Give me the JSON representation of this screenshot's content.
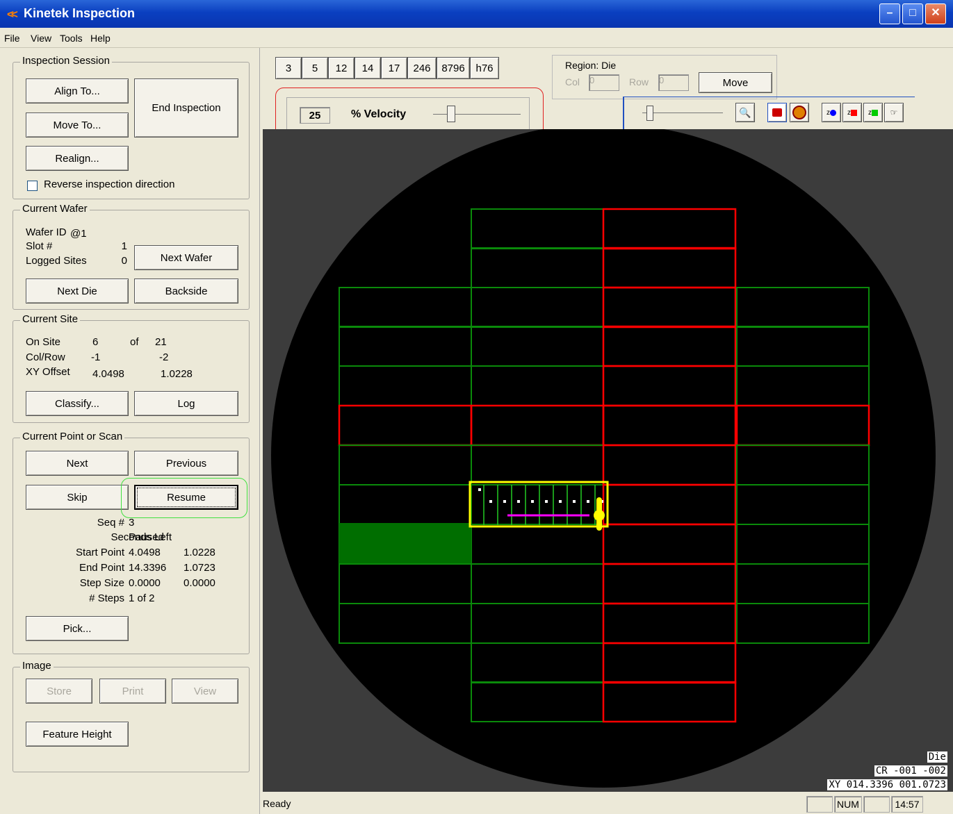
{
  "window": {
    "title": "Kinetek Inspection",
    "minimize": "–",
    "maximize": "□",
    "close": "✕"
  },
  "menu": [
    "File",
    "View",
    "Tools",
    "Help"
  ],
  "inspection_session": {
    "title": "Inspection Session",
    "align_to": "Align To...",
    "move_to": "Move To...",
    "end_inspection": "End Inspection",
    "realign": "Realign...",
    "reverse_direction": "Reverse inspection direction",
    "reverse_checked": false
  },
  "current_wafer": {
    "title": "Current Wafer",
    "wafer_id_label": "Wafer ID",
    "wafer_id": "@1",
    "slot_label": "Slot #",
    "slot": "1",
    "logged_sites_label": "Logged Sites",
    "logged_sites": "0",
    "next_wafer": "Next Wafer",
    "next_die": "Next Die",
    "backside": "Backside"
  },
  "current_site": {
    "title": "Current Site",
    "on_site_label": "On Site",
    "on_site": "6",
    "of_label": "of",
    "total": "21",
    "colrow_label": "Col/Row",
    "col": "-1",
    "row": "-2",
    "xy_offset_label": "XY Offset",
    "x_offset": "4.0498",
    "y_offset": "1.0228",
    "classify": "Classify...",
    "log": "Log"
  },
  "current_point": {
    "title": "Current Point or Scan",
    "next": "Next",
    "previous": "Previous",
    "skip": "Skip",
    "resume": "Resume",
    "seq_label": "Seq #",
    "seq": "3",
    "seconds_left_label": "Seconds Left",
    "seconds_left": "Paused",
    "start_point_label": "Start Point",
    "start_x": "4.0498",
    "start_y": "1.0228",
    "end_point_label": "End Point",
    "end_x": "14.3396",
    "end_y": "1.0723",
    "step_size_label": "Step Size",
    "step_x": "0.0000",
    "step_y": "0.0000",
    "steps_label": "# Steps",
    "steps": "1 of 2",
    "pick": "Pick..."
  },
  "image": {
    "title": "Image",
    "store": "Store",
    "print": "Print",
    "view": "View",
    "feature_height": "Feature Height"
  },
  "number_buttons": [
    "3",
    "5",
    "12",
    "14",
    "17",
    "246",
    "8796",
    "h76"
  ],
  "velocity": {
    "value": "25",
    "label": "% Velocity",
    "level_fraction": 0.25
  },
  "region": {
    "title": "Region: Die",
    "col_label": "Col",
    "col_value": "0",
    "row_label": "Row",
    "row_value": "0",
    "move": "Move"
  },
  "readout": {
    "line1": "Die",
    "line2": "CR -001 -002",
    "line3": "XY 014.3396 001.0723"
  },
  "status": {
    "text": "Ready",
    "num": "NUM",
    "time": "14:57"
  },
  "colors": {
    "die_green": "#0a8a0a",
    "die_red": "#ff0000",
    "selection": "#ffff00",
    "filled_die": "#006e00",
    "scan_line": "#ff00ff"
  }
}
